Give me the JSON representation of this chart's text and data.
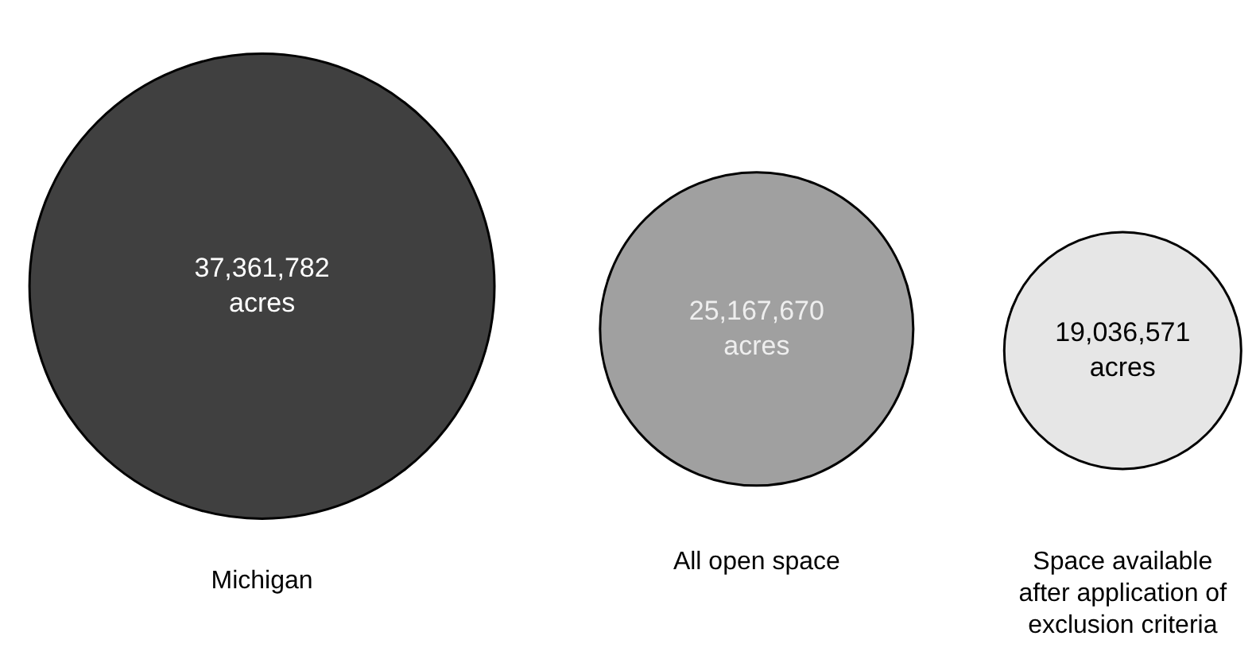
{
  "chart_data": {
    "type": "other",
    "categories": [
      "Michigan",
      "All open space",
      "Space available after application of exclusion criteria"
    ],
    "values": [
      37361782,
      25167670,
      19036571
    ],
    "value_labels": [
      "37,361,782 acres",
      "25,167,670 acres",
      "19,036,571 acres"
    ],
    "colors": [
      "#404040",
      "#a0a0a0",
      "#e6e6e6"
    ]
  }
}
